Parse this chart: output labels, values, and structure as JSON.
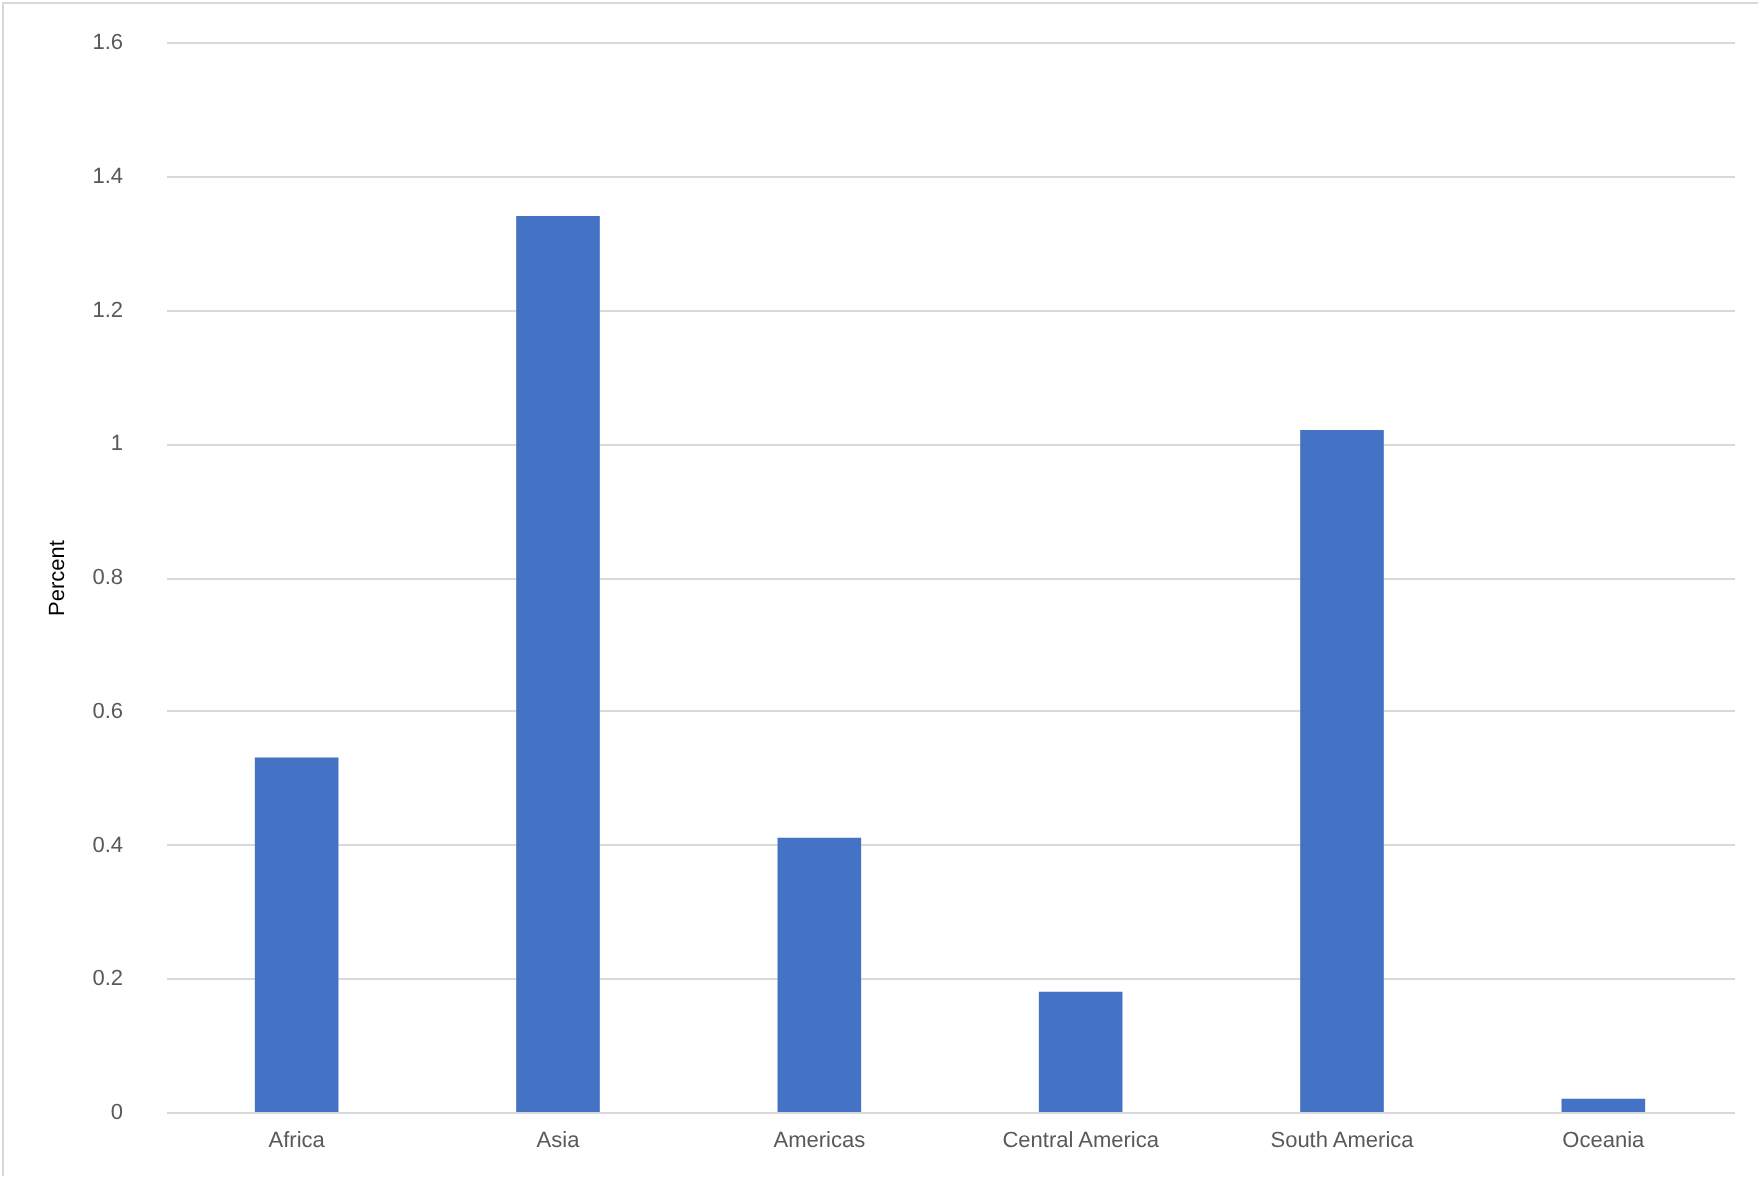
{
  "chart_data": {
    "type": "bar",
    "ylabel": "Percent",
    "categories": [
      "Africa",
      "Asia",
      "Americas",
      "Central America",
      "South America",
      "Oceania"
    ],
    "values": [
      0.53,
      1.34,
      0.41,
      0.18,
      1.02,
      0.02
    ],
    "color": "#4472c4",
    "ylim": [
      0,
      1.6
    ],
    "yticks": [
      0,
      0.2,
      0.4,
      0.6,
      0.8,
      1,
      1.2,
      1.4,
      1.6
    ],
    "grid": "y"
  }
}
